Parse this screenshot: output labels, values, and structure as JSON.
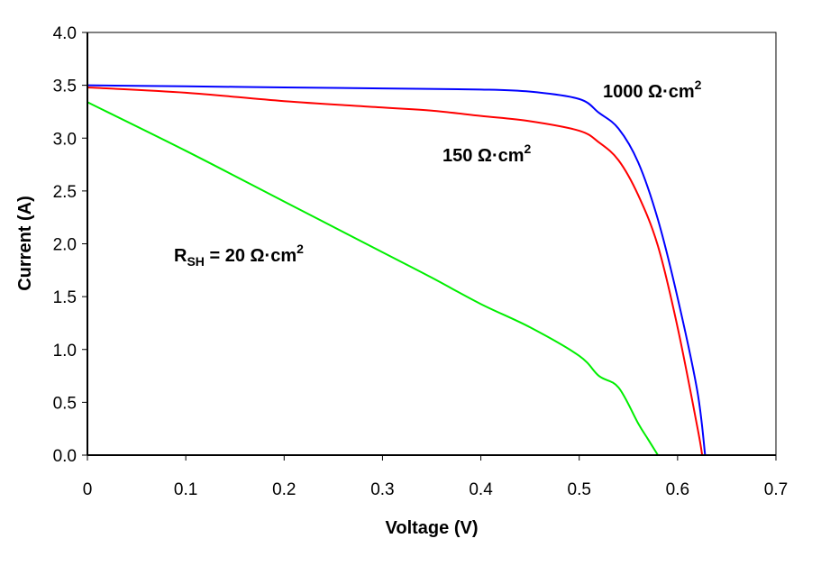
{
  "chart_data": {
    "type": "line",
    "title": "",
    "xlabel": "Voltage (V)",
    "ylabel": "Current (A)",
    "xlim": [
      0,
      0.7
    ],
    "ylim": [
      0,
      4.0
    ],
    "xticks": [
      "0",
      "0.1",
      "0.2",
      "0.3",
      "0.4",
      "0.5",
      "0.6",
      "0.7"
    ],
    "yticks": [
      "0.0",
      "0.5",
      "1.0",
      "1.5",
      "2.0",
      "2.5",
      "3.0",
      "3.5",
      "4.0"
    ],
    "grid": false,
    "series": [
      {
        "name": "1000 Ω·cm2",
        "label": "1000 Ω·cm",
        "sup": "2",
        "color": "#0000ff",
        "x": [
          0,
          0.1,
          0.2,
          0.3,
          0.4,
          0.45,
          0.5,
          0.52,
          0.54,
          0.56,
          0.58,
          0.6,
          0.62,
          0.628
        ],
        "y": [
          3.5,
          3.49,
          3.48,
          3.47,
          3.46,
          3.44,
          3.37,
          3.24,
          3.09,
          2.77,
          2.23,
          1.49,
          0.61,
          0
        ]
      },
      {
        "name": "150 Ω·cm2",
        "label": "150 Ω·cm",
        "sup": "2",
        "color": "#ff0000",
        "x": [
          0,
          0.1,
          0.2,
          0.3,
          0.35,
          0.4,
          0.45,
          0.5,
          0.52,
          0.54,
          0.56,
          0.58,
          0.6,
          0.62,
          0.625
        ],
        "y": [
          3.48,
          3.43,
          3.35,
          3.29,
          3.26,
          3.21,
          3.16,
          3.07,
          2.96,
          2.79,
          2.46,
          1.98,
          1.21,
          0.27,
          0
        ]
      },
      {
        "name": "RSH = 20 Ω·cm2",
        "label_main": "R",
        "label_sub": "SH",
        "label_rest": " = 20 Ω·cm",
        "sup": "2",
        "color": "#00ee00",
        "x": [
          0,
          0.1,
          0.2,
          0.3,
          0.35,
          0.4,
          0.45,
          0.5,
          0.52,
          0.54,
          0.56,
          0.57,
          0.58
        ],
        "y": [
          3.34,
          2.88,
          2.4,
          1.92,
          1.68,
          1.43,
          1.21,
          0.94,
          0.75,
          0.64,
          0.3,
          0.15,
          0
        ]
      }
    ]
  }
}
